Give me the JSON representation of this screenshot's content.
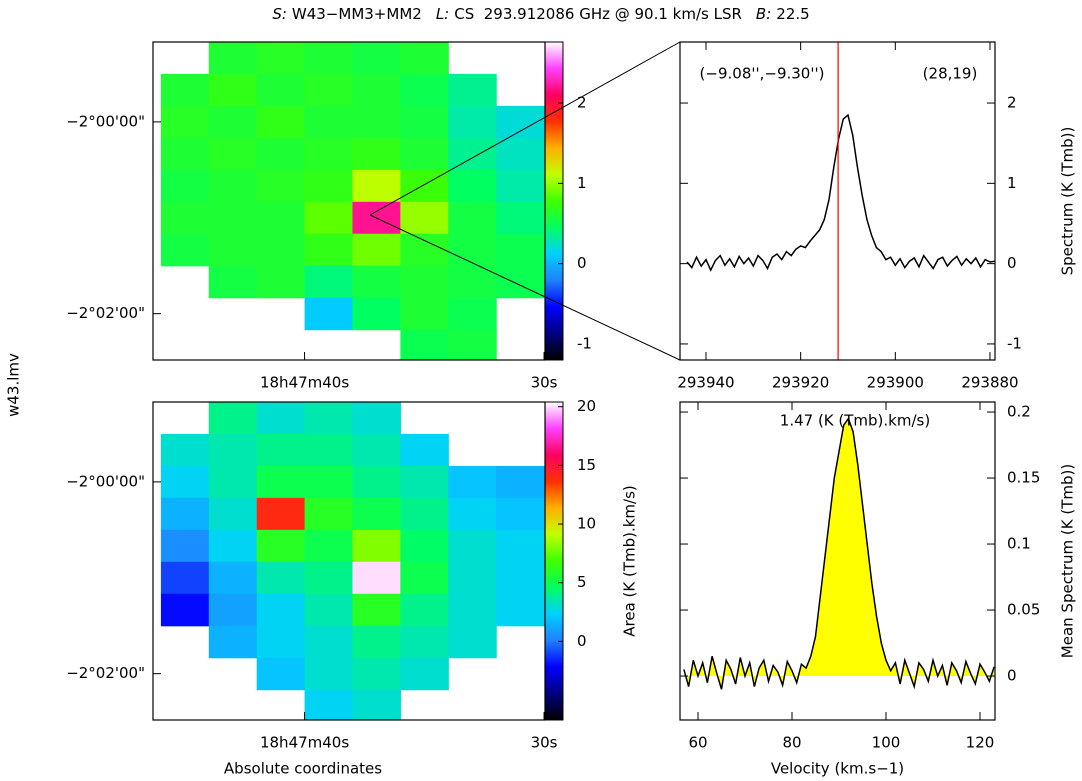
{
  "title": [
    "S:",
    "W43−MM3+MM2",
    "L:",
    "CS  293.912086 GHz @ 90.1 km/s LSR",
    "B:",
    "22.5"
  ],
  "side_label": "w43.lmv",
  "colormap": [
    "#000000",
    "#000080",
    "#0000ff",
    "#2080ff",
    "#00d0ff",
    "#00ff60",
    "#40ff00",
    "#c0ff00",
    "#ffb000",
    "#ff3000",
    "#ff0060",
    "#ff40ff",
    "#ffffff"
  ],
  "chart_data": [
    {
      "type": "heatmap",
      "x": [
        45,
        43,
        41,
        39,
        37,
        35,
        33,
        31
      ],
      "y": [
        -7160,
        -7180,
        -7200,
        -7220,
        -7240,
        -7260,
        -7280,
        -7300,
        -7320,
        -7340
      ],
      "z": [
        [
          null,
          0.6,
          0.65,
          0.6,
          0.55,
          0.6,
          null,
          null
        ],
        [
          0.6,
          0.7,
          0.6,
          0.65,
          0.6,
          0.5,
          0.35,
          null
        ],
        [
          0.65,
          0.6,
          0.7,
          0.6,
          0.6,
          0.55,
          0.3,
          0.2
        ],
        [
          0.6,
          0.65,
          0.6,
          0.65,
          0.7,
          0.6,
          0.35,
          0.25
        ],
        [
          0.55,
          0.6,
          0.65,
          0.7,
          1.1,
          0.75,
          0.45,
          0.3
        ],
        [
          0.6,
          0.6,
          0.6,
          0.85,
          2.2,
          1.0,
          0.55,
          0.4
        ],
        [
          0.55,
          0.6,
          0.6,
          0.7,
          0.9,
          0.65,
          0.55,
          0.5
        ],
        [
          null,
          0.55,
          0.6,
          0.4,
          0.55,
          0.6,
          0.55,
          0.5
        ],
        [
          null,
          null,
          null,
          0.1,
          0.45,
          0.6,
          0.5,
          null
        ],
        [
          null,
          null,
          null,
          null,
          null,
          0.5,
          0.55,
          null
        ]
      ],
      "xlim": [
        46.33,
        29.96
      ],
      "ylim": [
        -7349,
        -7150
      ],
      "xticks": [
        {
          "value": 40,
          "label": "18h47m40s"
        },
        {
          "value": 30,
          "label": "30s"
        }
      ],
      "yticks": [
        {
          "value": -7200,
          "label": "−2°00'00\""
        },
        {
          "value": -7320,
          "label": "−2°02'00\""
        }
      ],
      "clim": [
        -1.2,
        2.76
      ],
      "cticks": [
        -1,
        0,
        1,
        2
      ]
    },
    {
      "type": "heatmap",
      "x": [
        45,
        43,
        41,
        39,
        37,
        35,
        33,
        31
      ],
      "y": [
        -7160,
        -7180,
        -7200,
        -7220,
        -7240,
        -7260,
        -7280,
        -7300,
        -7320,
        -7340
      ],
      "z": [
        [
          null,
          4,
          3,
          3.5,
          3,
          null,
          null,
          null
        ],
        [
          3,
          3.5,
          4,
          4,
          3.5,
          2.5,
          null,
          null
        ],
        [
          2.5,
          3.5,
          5,
          5,
          4,
          3.5,
          2,
          1.5
        ],
        [
          1.5,
          3,
          14,
          6,
          5,
          4,
          2.5,
          2
        ],
        [
          0.5,
          2.5,
          6,
          5,
          8,
          4.5,
          3,
          2.5
        ],
        [
          -1,
          1.5,
          3.5,
          4,
          20,
          5,
          3,
          2.5
        ],
        [
          -2,
          1,
          2.5,
          3.5,
          6,
          4,
          3,
          2.5
        ],
        [
          null,
          1.5,
          2.5,
          3,
          4,
          3.5,
          3,
          null
        ],
        [
          null,
          null,
          2,
          3,
          3.5,
          3,
          null,
          null
        ],
        [
          null,
          null,
          null,
          2.5,
          3,
          null,
          null,
          null
        ]
      ],
      "xlim": [
        46.33,
        29.96
      ],
      "ylim": [
        -7349,
        -7150
      ],
      "xticks": [
        {
          "value": 40,
          "label": "18h47m40s"
        },
        {
          "value": 30,
          "label": "30s"
        }
      ],
      "yticks": [
        {
          "value": -7200,
          "label": "−2°00'00\""
        },
        {
          "value": -7320,
          "label": "−2°02'00\""
        }
      ],
      "xlabel": "Absolute coordinates",
      "clim": [
        -6.7,
        20.4
      ],
      "cticks": [
        0,
        5,
        10,
        15,
        20
      ],
      "clabel": "Area (K (Tmb).km/s)"
    },
    {
      "type": "line",
      "x": [
        293944,
        293943,
        293942,
        293941,
        293940,
        293939,
        293938,
        293937,
        293936,
        293935,
        293934,
        293933,
        293932,
        293931,
        293930,
        293929,
        293928,
        293927,
        293926,
        293925,
        293924,
        293923,
        293922,
        293921,
        293920,
        293919,
        293918,
        293917,
        293916,
        293915,
        293914,
        293913,
        293912,
        293911,
        293910,
        293909,
        293908,
        293907,
        293906,
        293905,
        293904,
        293903,
        293902,
        293901,
        293900,
        293899,
        293898,
        293897,
        293896,
        293895,
        293894,
        293893,
        293892,
        293891,
        293890,
        293889,
        293888,
        293887,
        293886,
        293885,
        293884,
        293883,
        293882,
        293881,
        293880,
        293879
      ],
      "values": [
        0.02,
        -0.05,
        0.08,
        -0.03,
        0.05,
        -0.08,
        0.04,
        0.1,
        -0.02,
        0.06,
        -0.04,
        0.09,
        0.0,
        0.07,
        -0.03,
        0.1,
        0.04,
        -0.06,
        0.08,
        0.12,
        0.05,
        0.15,
        0.1,
        0.18,
        0.22,
        0.2,
        0.28,
        0.35,
        0.42,
        0.55,
        0.8,
        1.2,
        1.55,
        1.8,
        1.85,
        1.6,
        1.2,
        0.85,
        0.55,
        0.35,
        0.2,
        0.15,
        0.05,
        0.08,
        -0.02,
        0.06,
        -0.05,
        0.03,
        0.07,
        -0.04,
        0.1,
        0.02,
        -0.06,
        0.05,
        0.08,
        -0.03,
        0.04,
        0.09,
        -0.02,
        0.06,
        0.0,
        0.07,
        -0.04,
        0.05,
        0.02,
        0.03
      ],
      "color": "#000000",
      "xlim": [
        293945.49,
        293878.94
      ],
      "ylim": [
        -1.2,
        2.76
      ],
      "xticks": [
        293940,
        293920,
        293900,
        293880
      ],
      "yticks": [
        -1,
        0,
        1,
        2
      ],
      "ylabel": "Spectrum (K (Tmb))",
      "marker": 293912.086,
      "marker_color": "#ff0000",
      "annotations": [
        "(−9.08'',−9.30'')",
        "(28,19)"
      ]
    },
    {
      "type": "area",
      "x": [
        57,
        58,
        59,
        60,
        61,
        62,
        63,
        64,
        65,
        66,
        67,
        68,
        69,
        70,
        71,
        72,
        73,
        74,
        75,
        76,
        77,
        78,
        79,
        80,
        81,
        82,
        83,
        84,
        85,
        86,
        87,
        88,
        89,
        90,
        91,
        92,
        93,
        94,
        95,
        96,
        97,
        98,
        99,
        100,
        101,
        102,
        103,
        104,
        105,
        106,
        107,
        108,
        109,
        110,
        111,
        112,
        113,
        114,
        115,
        116,
        117,
        118,
        119,
        120,
        121,
        122,
        123
      ],
      "values": [
        0.005,
        -0.008,
        0.012,
        0.0,
        0.01,
        -0.005,
        0.015,
        0.002,
        -0.01,
        0.012,
        0.005,
        -0.006,
        0.014,
        0.0,
        0.01,
        -0.008,
        0.006,
        0.012,
        -0.004,
        0.008,
        0.003,
        -0.007,
        0.011,
        0.004,
        -0.005,
        0.009,
        0.006,
        0.015,
        0.03,
        0.06,
        0.09,
        0.12,
        0.15,
        0.17,
        0.19,
        0.195,
        0.185,
        0.16,
        0.13,
        0.1,
        0.07,
        0.045,
        0.025,
        0.012,
        0.004,
        0.01,
        -0.006,
        0.012,
        0.002,
        -0.008,
        0.01,
        0.005,
        -0.004,
        0.012,
        0.0,
        0.008,
        -0.007,
        0.01,
        0.004,
        -0.005,
        0.011,
        0.002,
        -0.006,
        0.009,
        0.003,
        -0.004,
        0.007
      ],
      "color": "#000000",
      "fill": "#ffff00",
      "xlim": [
        56.17,
        123.19
      ],
      "ylim": [
        -0.0333,
        0.2076
      ],
      "xticks": [
        60,
        80,
        100,
        120
      ],
      "yticks": [
        0,
        0.05,
        0.1,
        0.15,
        0.2
      ],
      "xlabel": "Velocity (km.s−1)",
      "ylabel": "Mean Spectrum (K (Tmb))",
      "annotation": "1.47 (K (Tmb).km/s)"
    }
  ]
}
